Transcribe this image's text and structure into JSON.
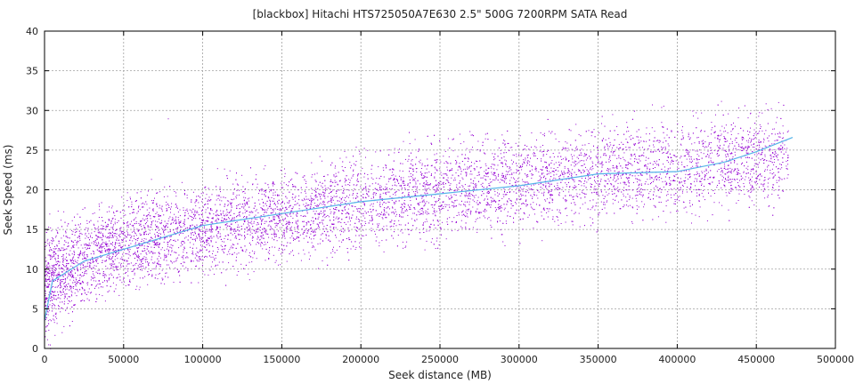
{
  "chart_data": {
    "type": "scatter",
    "title": "[blackbox] Hitachi HTS725050A7E630 2.5\" 500G 7200RPM SATA Read",
    "xlabel": "Seek distance (MB)",
    "ylabel": "Seek Speed (ms)",
    "xlim": [
      0,
      500000
    ],
    "ylim": [
      0,
      40
    ],
    "x_ticks": [
      0,
      50000,
      100000,
      150000,
      200000,
      250000,
      300000,
      350000,
      400000,
      450000,
      500000
    ],
    "y_ticks": [
      0,
      5,
      10,
      15,
      20,
      25,
      30,
      35,
      40
    ],
    "grid": true,
    "legend": "none",
    "colors": {
      "points": "#9400d3",
      "trend": "#56b4e9",
      "grid": "#a0a0a0",
      "frame": "#000000"
    },
    "point_cloud": {
      "approx_count": 26000,
      "x_range": [
        0,
        470000
      ],
      "y_range": [
        3,
        29
      ],
      "band": [
        {
          "x": 0,
          "y_low": 3,
          "y_high": 13
        },
        {
          "x": 25000,
          "y_low": 7,
          "y_high": 16
        },
        {
          "x": 50000,
          "y_low": 9,
          "y_high": 17.5
        },
        {
          "x": 100000,
          "y_low": 11,
          "y_high": 19.5
        },
        {
          "x": 150000,
          "y_low": 12.5,
          "y_high": 21
        },
        {
          "x": 200000,
          "y_low": 14,
          "y_high": 23
        },
        {
          "x": 250000,
          "y_low": 15.5,
          "y_high": 24.5
        },
        {
          "x": 300000,
          "y_low": 16.5,
          "y_high": 25.5
        },
        {
          "x": 350000,
          "y_low": 17.5,
          "y_high": 26.5
        },
        {
          "x": 400000,
          "y_low": 18.5,
          "y_high": 27.5
        },
        {
          "x": 450000,
          "y_low": 19.5,
          "y_high": 28.5
        },
        {
          "x": 470000,
          "y_low": 20,
          "y_high": 29
        }
      ],
      "outliers": [
        {
          "x": 78000,
          "y": 29
        },
        {
          "x": 255000,
          "y": 26.5
        },
        {
          "x": 424000,
          "y": 29.5
        }
      ]
    },
    "series": [
      {
        "type": "line",
        "x": [
          0,
          5000,
          25000,
          50000,
          75000,
          100000,
          150000,
          200000,
          250000,
          300000,
          350000,
          400000,
          430000,
          450000,
          473000
        ],
        "y": [
          3.5,
          8.5,
          11.0,
          12.5,
          14.0,
          15.5,
          17.0,
          18.5,
          19.5,
          20.5,
          22.0,
          22.3,
          23.5,
          24.8,
          26.6
        ]
      }
    ]
  }
}
